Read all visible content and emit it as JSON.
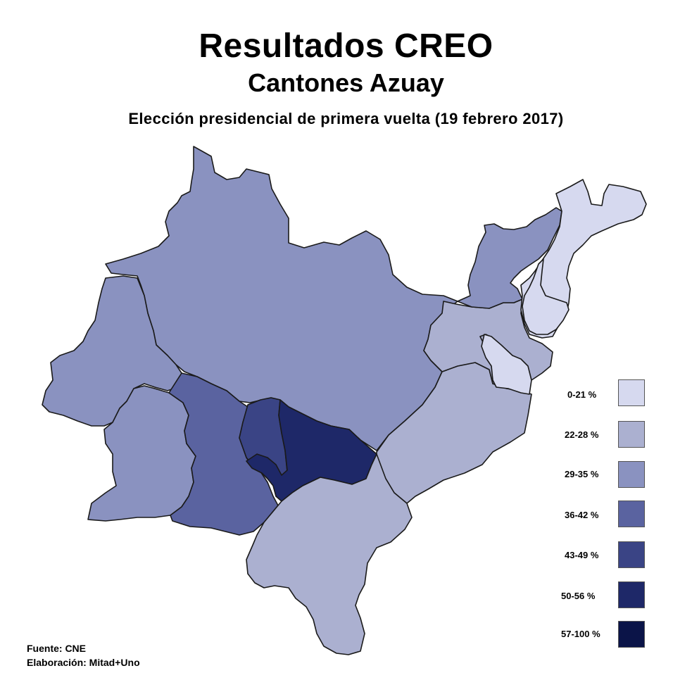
{
  "title": "Resultados CREO",
  "subtitle": "Cantones Azuay",
  "caption": "Elección presidencial de primera vuelta (19 febrero 2017)",
  "legend": [
    {
      "label": "0-21 %",
      "color": "#d6d9ef"
    },
    {
      "label": "22-28 %",
      "color": "#abb0d0"
    },
    {
      "label": "29-35 %",
      "color": "#8a92c0"
    },
    {
      "label": "36-42 %",
      "color": "#5a63a0"
    },
    {
      "label": "43-49 %",
      "color": "#3a4485"
    },
    {
      "label": "50-56 %",
      "color": "#1e2868"
    },
    {
      "label": "57-100 %",
      "color": "#0b1448"
    }
  ],
  "footer": {
    "source": "Fuente: CNE",
    "author": "Elaboración: Mitad+Uno"
  },
  "map": {
    "stroke_color": "#1a1a1a",
    "cantons": [
      {
        "id": "north-large",
        "range": "29-35 %",
        "color": "#8a92c0"
      },
      {
        "id": "west",
        "range": "29-35 %",
        "color": "#8a92c0"
      },
      {
        "id": "southwest",
        "range": "29-35 %",
        "color": "#8a92c0"
      },
      {
        "id": "south-central",
        "range": "36-42 %",
        "color": "#5a63a0"
      },
      {
        "id": "central-small",
        "range": "43-49 %",
        "color": "#3a4485"
      },
      {
        "id": "central-darkest",
        "range": "50-56 %",
        "color": "#1e2868"
      },
      {
        "id": "east-large",
        "range": "22-28 %",
        "color": "#abb0d0"
      },
      {
        "id": "east-middle",
        "range": "22-28 %",
        "color": "#abb0d0"
      },
      {
        "id": "northeast-strip",
        "range": "29-35 %",
        "color": "#8a92c0"
      },
      {
        "id": "northeast-tip",
        "range": "0-21 %",
        "color": "#d6d9ef"
      },
      {
        "id": "east-small-inner",
        "range": "0-21 %",
        "color": "#d6d9ef"
      },
      {
        "id": "east-small-island",
        "range": "0-21 %",
        "color": "#d6d9ef"
      },
      {
        "id": "south",
        "range": "22-28 %",
        "color": "#abb0d0"
      }
    ]
  }
}
